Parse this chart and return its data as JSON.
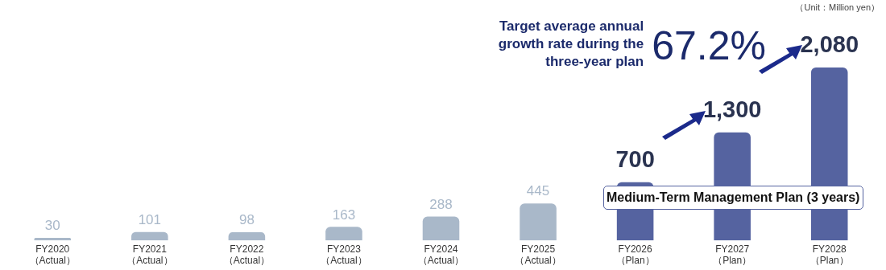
{
  "chart_data": {
    "type": "bar",
    "categories": [
      "FY2020\n（Actual）",
      "FY2021\n（Actual）",
      "FY2022\n（Actual）",
      "FY2023\n（Actual）",
      "FY2024\n（Actual）",
      "FY2025\n（Actual）",
      "FY2026\n（Plan）",
      "FY2027\n（Plan）",
      "FY2028\n（Plan）"
    ],
    "values": [
      30,
      101,
      98,
      163,
      288,
      445,
      700,
      1300,
      2080
    ],
    "colors": [
      "#a9b8c9",
      "#a9b8c9",
      "#a9b8c9",
      "#a9b8c9",
      "#a9b8c9",
      "#a9b8c9",
      "#5563a0",
      "#5563a0",
      "#5563a0"
    ],
    "value_labels": [
      "30",
      "101",
      "98",
      "163",
      "288",
      "445",
      "700",
      "1,300",
      "2,080"
    ],
    "annotations": [
      "（Unit：Million yen）",
      "Target average annual growth rate during the three-year plan",
      "67.2%",
      "Medium-Term Management Plan (3 years)"
    ],
    "grid": false,
    "legend": false,
    "tick_labels": "x"
  }
}
